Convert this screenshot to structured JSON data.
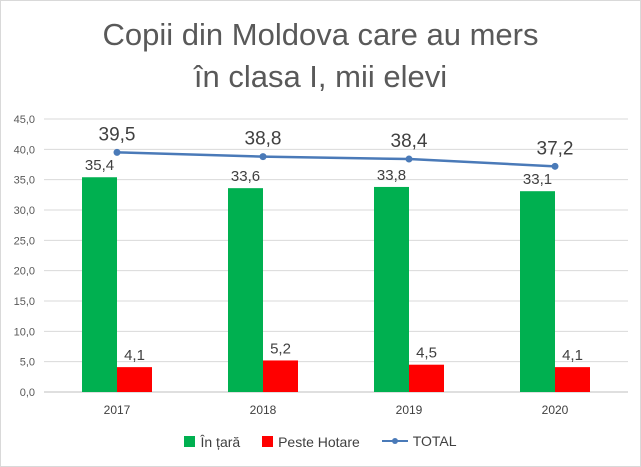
{
  "chart_data": {
    "type": "bar",
    "title_lines": [
      "Copii din Moldova care au mers",
      "în clasa I, mii elevi"
    ],
    "categories": [
      "2017",
      "2018",
      "2019",
      "2020"
    ],
    "series": [
      {
        "name": "În țară",
        "kind": "bar",
        "color": "#00b050",
        "values": [
          35.4,
          33.6,
          33.8,
          33.1
        ],
        "labels": [
          "35,4",
          "33,6",
          "33,8",
          "33,1"
        ]
      },
      {
        "name": "Peste Hotare",
        "kind": "bar",
        "color": "#ff0000",
        "values": [
          4.1,
          5.2,
          4.5,
          4.1
        ],
        "labels": [
          "4,1",
          "5,2",
          "4,5",
          "4,1"
        ]
      },
      {
        "name": "TOTAL",
        "kind": "line",
        "color": "#4a7ab8",
        "values": [
          39.5,
          38.8,
          38.4,
          37.2
        ],
        "labels": [
          "39,5",
          "38,8",
          "38,4",
          "37,2"
        ]
      }
    ],
    "ylim": [
      0,
      45
    ],
    "yticks": [
      "0,0",
      "5,0",
      "10,0",
      "15,0",
      "20,0",
      "25,0",
      "30,0",
      "35,0",
      "40,0",
      "45,0"
    ],
    "grid": true,
    "legend_position": "bottom"
  }
}
